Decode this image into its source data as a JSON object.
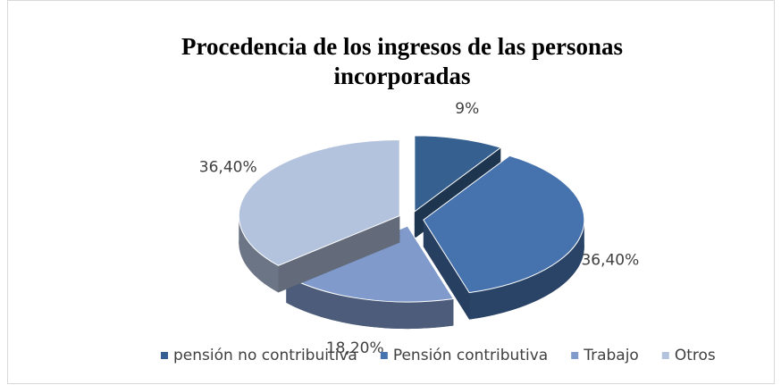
{
  "chart_data": {
    "type": "pie",
    "title": "Procedencia de los ingresos de las personas incorporadas",
    "categories": [
      "pensión no contribuitiva",
      "Pensión contributiva",
      "Trabajo",
      "Otros"
    ],
    "values": [
      9,
      36.4,
      18.2,
      36.4
    ],
    "value_labels": [
      "9%",
      "36,40%",
      "18,20%",
      "36,40%"
    ],
    "colors": [
      "#35608f",
      "#4672ae",
      "#7f9acb",
      "#b4c3dd"
    ],
    "legend": "bottom"
  }
}
